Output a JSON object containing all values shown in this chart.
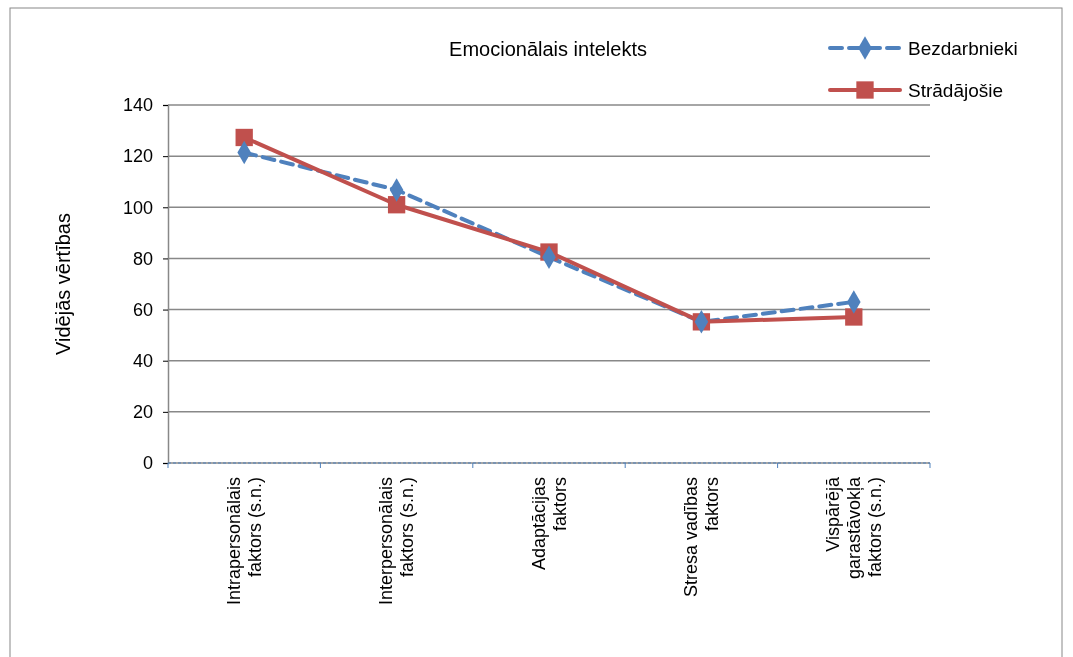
{
  "chart_data": {
    "type": "line",
    "title": "Emocionālais  intelekts",
    "ylabel": "Vidējās  vērtības",
    "categories": [
      "Intrapersonālais faktors (s.n.)",
      "Interpersonālais faktors (s.n.)",
      "Adaptācijas faktors",
      "Stresa vadības faktors",
      "Vispārējā garastāvokļa faktors (s.n.)"
    ],
    "series": [
      {
        "name": "Bezdarbnieki",
        "color": "#4f81bd",
        "values": [
          121.4,
          106.8,
          80.5,
          55.2,
          63
        ],
        "marker": "diamond",
        "line_style": "dashed"
      },
      {
        "name": "Strādājošie",
        "color": "#c0504d",
        "values": [
          127.3,
          101,
          82.5,
          55.2,
          57.1
        ],
        "marker": "square",
        "line_style": "solid"
      }
    ],
    "ylim": [
      0,
      140
    ],
    "yticks": [
      0,
      20,
      40,
      60,
      80,
      100,
      120,
      140
    ],
    "grid": "y",
    "legend": "top right"
  }
}
